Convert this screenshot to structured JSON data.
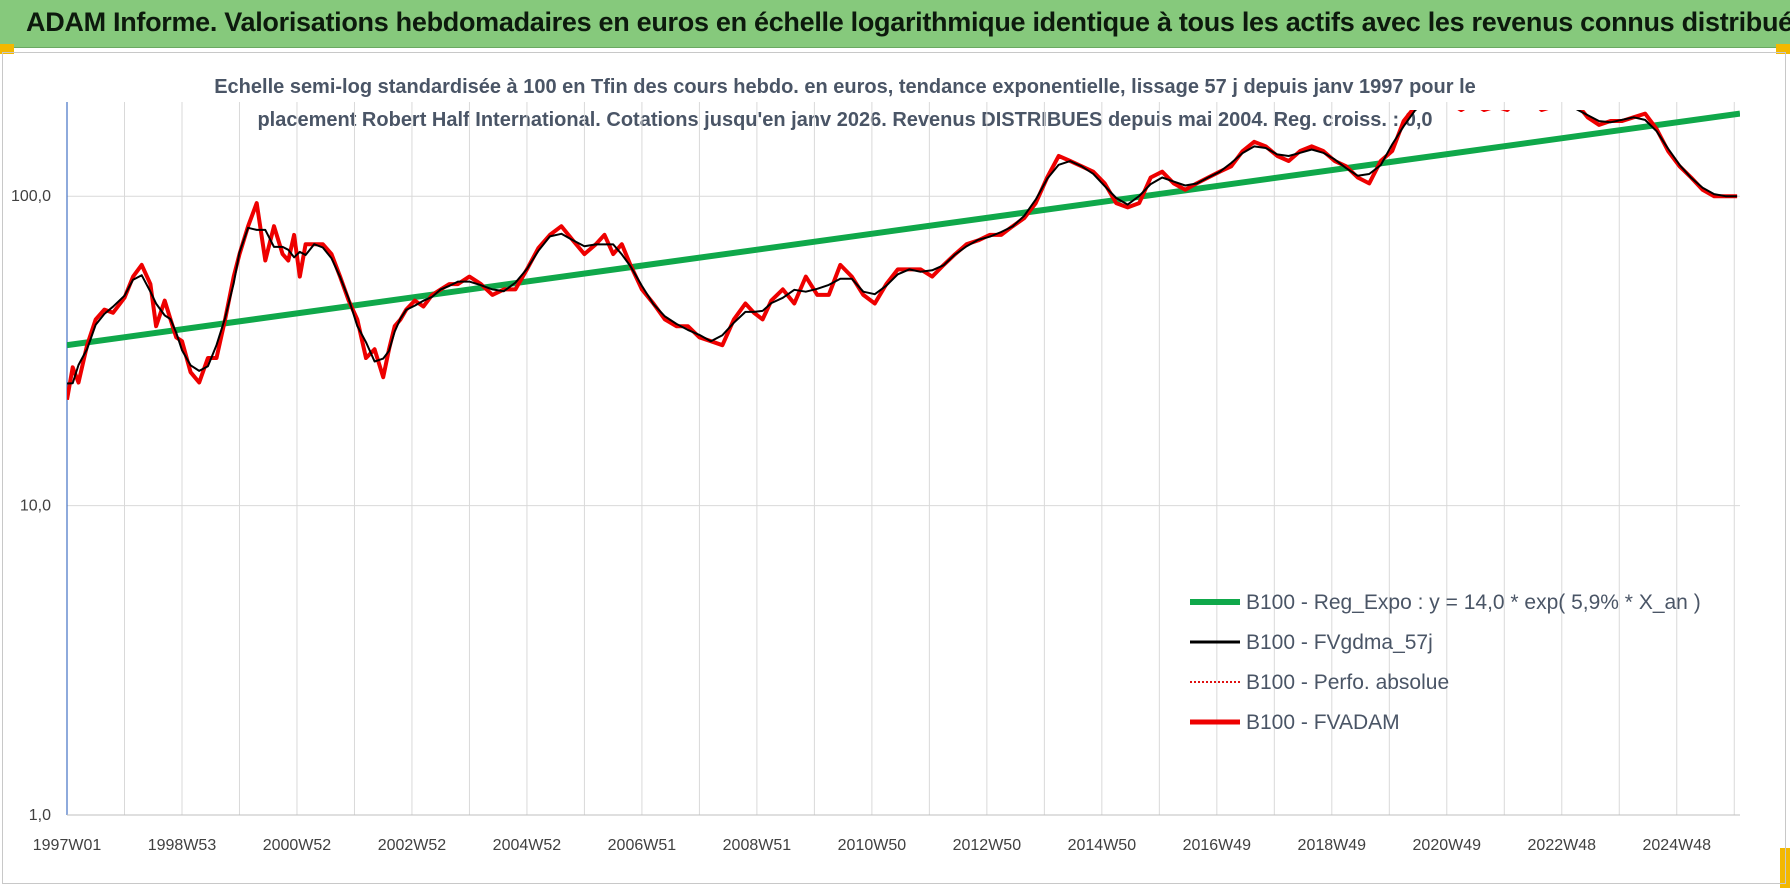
{
  "header": {
    "title": "ADAM Informe. Valorisations hebdomadaires en euros en échelle logarithmique identique à tous les actifs avec les revenus connus distribués"
  },
  "chart_data": {
    "type": "line",
    "y_scale": "log",
    "grid": "on",
    "legend_position": "bottom-right",
    "subtitle_line1": "Echelle semi-log standardisée à 100 en Tfin des cours hebdo. en euros, tendance exponentielle, lissage 57 j depuis janv 1997 pour le",
    "subtitle_line2": "placement Robert Half International. Cotations jusqu'en janv 2026. Revenus DISTRIBUES depuis mai 2004. Reg. croiss. : 0,0",
    "ylim": [
      1,
      190
    ],
    "y_ticks": [
      "1,0",
      "10,0",
      "100,0"
    ],
    "x_ticks": [
      "1997W01",
      "1998W53",
      "2000W52",
      "2002W52",
      "2004W52",
      "2006W51",
      "2008W51",
      "2010W50",
      "2012W50",
      "2014W50",
      "2016W49",
      "2018W49",
      "2020W49",
      "2022W48",
      "2024W48"
    ],
    "x_tick_years": [
      1997.0,
      1999.0,
      2001.0,
      2003.0,
      2005.0,
      2007.0,
      2009.0,
      2011.0,
      2013.0,
      2015.0,
      2017.0,
      2019.0,
      2021.0,
      2023.0,
      2025.0
    ],
    "xlim": [
      1997.0,
      2026.1
    ],
    "series": [
      {
        "name": "B100 - Reg_Expo : y = 14,0 * exp( 5,9% *  X_an )",
        "color": "#0fa84a",
        "role": "trend",
        "x": [
          1997.0,
          2026.1
        ],
        "values": [
          33,
          185
        ]
      },
      {
        "name": "B100 - FVgdma_57j",
        "color": "#000000",
        "role": "smooth"
      },
      {
        "name": "B100 - Perfo. absolue",
        "color": "#e01010",
        "role": "dotted"
      },
      {
        "name": "B100 - FVADAM",
        "color": "#ee0000",
        "role": "main",
        "x": [
          1997.0,
          1997.1,
          1997.2,
          1997.35,
          1997.5,
          1997.65,
          1997.8,
          1998.0,
          1998.15,
          1998.3,
          1998.45,
          1998.55,
          1998.7,
          1998.8,
          1998.9,
          1999.0,
          1999.15,
          1999.3,
          1999.45,
          1999.6,
          1999.75,
          1999.9,
          2000.0,
          2000.15,
          2000.3,
          2000.45,
          2000.6,
          2000.75,
          2000.85,
          2000.95,
          2001.05,
          2001.15,
          2001.3,
          2001.45,
          2001.6,
          2001.75,
          2001.9,
          2002.05,
          2002.2,
          2002.35,
          2002.5,
          2002.6,
          2002.7,
          2002.8,
          2002.9,
          2003.05,
          2003.2,
          2003.35,
          2003.5,
          2003.65,
          2003.8,
          2004.0,
          2004.2,
          2004.4,
          2004.6,
          2004.8,
          2005.0,
          2005.2,
          2005.4,
          2005.6,
          2005.8,
          2006.0,
          2006.2,
          2006.35,
          2006.5,
          2006.65,
          2006.8,
          2007.0,
          2007.2,
          2007.4,
          2007.6,
          2007.8,
          2008.0,
          2008.2,
          2008.4,
          2008.6,
          2008.8,
          2008.95,
          2009.1,
          2009.25,
          2009.45,
          2009.65,
          2009.85,
          2010.05,
          2010.25,
          2010.45,
          2010.65,
          2010.85,
          2011.05,
          2011.25,
          2011.45,
          2011.65,
          2011.85,
          2012.05,
          2012.25,
          2012.45,
          2012.65,
          2012.85,
          2013.05,
          2013.25,
          2013.45,
          2013.65,
          2013.85,
          2014.05,
          2014.25,
          2014.45,
          2014.65,
          2014.85,
          2015.05,
          2015.25,
          2015.45,
          2015.65,
          2015.85,
          2016.05,
          2016.25,
          2016.45,
          2016.65,
          2016.85,
          2017.05,
          2017.25,
          2017.45,
          2017.65,
          2017.85,
          2018.05,
          2018.25,
          2018.45,
          2018.65,
          2018.85,
          2019.05,
          2019.25,
          2019.45,
          2019.65,
          2019.85,
          2020.05,
          2020.25,
          2020.45,
          2020.65,
          2020.85,
          2021.05,
          2021.25,
          2021.45,
          2021.65,
          2021.85,
          2022.05,
          2022.25,
          2022.45,
          2022.65,
          2022.85,
          2023.05,
          2023.25,
          2023.45,
          2023.65,
          2023.85,
          2024.05,
          2024.25,
          2024.45,
          2024.65,
          2024.85,
          2025.05,
          2025.25,
          2025.45,
          2025.65,
          2025.85,
          2026.05
        ],
        "values": [
          22,
          28,
          25,
          33,
          40,
          43,
          42,
          47,
          55,
          60,
          52,
          38,
          46,
          40,
          35,
          34,
          27,
          25,
          30,
          30,
          40,
          55,
          65,
          80,
          95,
          62,
          80,
          65,
          62,
          75,
          55,
          70,
          70,
          70,
          65,
          55,
          46,
          40,
          30,
          32,
          26,
          32,
          38,
          40,
          43,
          46,
          44,
          48,
          50,
          52,
          52,
          55,
          52,
          48,
          50,
          50,
          58,
          68,
          75,
          80,
          72,
          65,
          70,
          75,
          65,
          70,
          60,
          50,
          45,
          40,
          38,
          38,
          35,
          34,
          33,
          40,
          45,
          42,
          40,
          46,
          50,
          45,
          55,
          48,
          48,
          60,
          55,
          48,
          45,
          52,
          58,
          58,
          58,
          55,
          60,
          65,
          70,
          72,
          75,
          75,
          80,
          85,
          95,
          115,
          135,
          130,
          125,
          120,
          110,
          95,
          92,
          95,
          115,
          120,
          110,
          105,
          110,
          115,
          120,
          125,
          140,
          150,
          145,
          135,
          130,
          140,
          145,
          140,
          130,
          125,
          115,
          110,
          130,
          140,
          175,
          195,
          200,
          210,
          200,
          190,
          200,
          190,
          195,
          190,
          205,
          205,
          190,
          195,
          195,
          200,
          180,
          170,
          175,
          175,
          180,
          185,
          165,
          140,
          125,
          115,
          105,
          100,
          100,
          100
        ]
      }
    ]
  }
}
